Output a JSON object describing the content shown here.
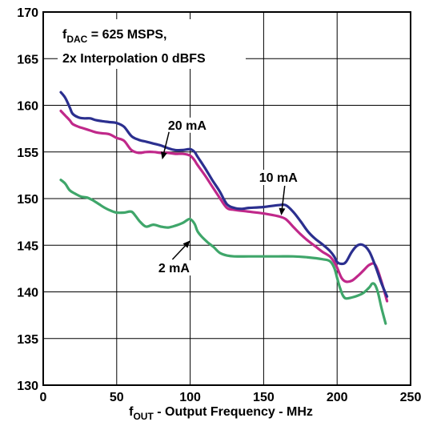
{
  "chart_data": {
    "type": "line",
    "xlabel": {
      "main": "f",
      "sub": "OUT",
      "rest": " - Output Frequency - MHz"
    },
    "ylabel": "",
    "xlim": [
      0,
      250
    ],
    "ylim": [
      130,
      170
    ],
    "xticks": [
      "0",
      "50",
      "100",
      "150",
      "200",
      "250"
    ],
    "yticks": [
      "130",
      "135",
      "140",
      "145",
      "150",
      "155",
      "160",
      "165",
      "170"
    ],
    "grid": true,
    "annotation_box": {
      "line1_main": "f",
      "line1_sub": "DAC",
      "line1_rest": " = 625 MSPS,",
      "line2": "2x Interpolation 0 dBFS"
    },
    "series": [
      {
        "name": "20 mA",
        "color": "#2b2f8f",
        "x": [
          12,
          15,
          18,
          20,
          24,
          28,
          32,
          36,
          40,
          45,
          50,
          55,
          60,
          65,
          70,
          75,
          80,
          85,
          90,
          95,
          100,
          103,
          105,
          110,
          115,
          120,
          125,
          130,
          135,
          140,
          150,
          160,
          165,
          170,
          175,
          180,
          185,
          190,
          195,
          198,
          200,
          203,
          206,
          210,
          214,
          218,
          222,
          226,
          230,
          234
        ],
        "y": [
          161.4,
          160.8,
          159.8,
          159.1,
          158.7,
          158.6,
          158.6,
          158.4,
          158.3,
          158.2,
          158.1,
          157.7,
          156.7,
          156.3,
          156.1,
          155.9,
          155.7,
          155.4,
          155.2,
          155.2,
          155.3,
          155.0,
          154.5,
          153.3,
          152.0,
          150.8,
          149.4,
          149.0,
          148.9,
          149.0,
          149.1,
          149.3,
          149.3,
          148.6,
          147.6,
          146.5,
          145.7,
          145.1,
          144.4,
          143.8,
          143.2,
          143.0,
          143.2,
          144.3,
          145.0,
          145.0,
          144.3,
          142.8,
          141.0,
          139.5
        ]
      },
      {
        "name": "10 mA",
        "color": "#c0288a",
        "x": [
          12,
          15,
          18,
          20,
          24,
          28,
          32,
          36,
          40,
          45,
          50,
          55,
          60,
          65,
          70,
          75,
          80,
          85,
          90,
          95,
          100,
          103,
          105,
          110,
          115,
          120,
          125,
          130,
          140,
          150,
          160,
          165,
          170,
          175,
          180,
          185,
          190,
          195,
          198,
          200,
          203,
          206,
          210,
          214,
          218,
          222,
          226,
          230,
          234
        ],
        "y": [
          159.4,
          158.9,
          158.4,
          158.0,
          157.7,
          157.5,
          157.3,
          157.1,
          157.0,
          156.9,
          156.5,
          156.2,
          155.2,
          154.9,
          155.0,
          155.0,
          154.9,
          154.9,
          154.8,
          154.8,
          154.6,
          154.1,
          153.6,
          152.5,
          151.3,
          150.1,
          149.0,
          148.8,
          148.6,
          148.4,
          148.1,
          147.8,
          147.0,
          146.2,
          145.5,
          144.9,
          144.3,
          143.8,
          143.2,
          142.6,
          141.5,
          141.1,
          141.2,
          141.7,
          142.3,
          142.9,
          142.9,
          141.2,
          139.0
        ]
      },
      {
        "name": "2 mA",
        "color": "#3fa66a",
        "x": [
          12,
          15,
          18,
          22,
          26,
          30,
          34,
          38,
          42,
          46,
          50,
          55,
          60,
          63,
          66,
          70,
          75,
          80,
          85,
          90,
          95,
          98,
          100,
          103,
          105,
          108,
          112,
          116,
          120,
          125,
          130,
          140,
          150,
          160,
          170,
          180,
          190,
          195,
          198,
          200,
          202,
          204,
          206,
          210,
          214,
          218,
          222,
          224,
          226,
          228,
          230,
          233
        ],
        "y": [
          152.0,
          151.6,
          150.9,
          150.5,
          150.2,
          150.1,
          149.8,
          149.4,
          149.0,
          148.7,
          148.5,
          148.5,
          148.6,
          148.1,
          147.5,
          147.0,
          147.2,
          147.0,
          146.9,
          147.1,
          147.4,
          147.7,
          147.8,
          147.3,
          146.5,
          145.9,
          145.3,
          144.8,
          144.2,
          143.9,
          143.8,
          143.8,
          143.8,
          143.8,
          143.8,
          143.7,
          143.5,
          143.3,
          142.6,
          141.5,
          140.4,
          139.6,
          139.3,
          139.4,
          139.6,
          139.9,
          140.5,
          140.9,
          140.7,
          139.8,
          138.4,
          136.6
        ]
      }
    ],
    "labels": [
      {
        "text": "20 mA",
        "series": 0,
        "arrow_x": 81,
        "arrow_y": 154.2,
        "text_x": 98,
        "text_y": 157.4
      },
      {
        "text": "10 mA",
        "series": 1,
        "arrow_x": 162,
        "arrow_y": 148.2,
        "text_x": 160,
        "text_y": 151.8
      },
      {
        "text": "2 mA",
        "series": 2,
        "arrow_x": 100,
        "arrow_y": 145.5,
        "text_x": 89,
        "text_y": 142.1
      }
    ]
  }
}
